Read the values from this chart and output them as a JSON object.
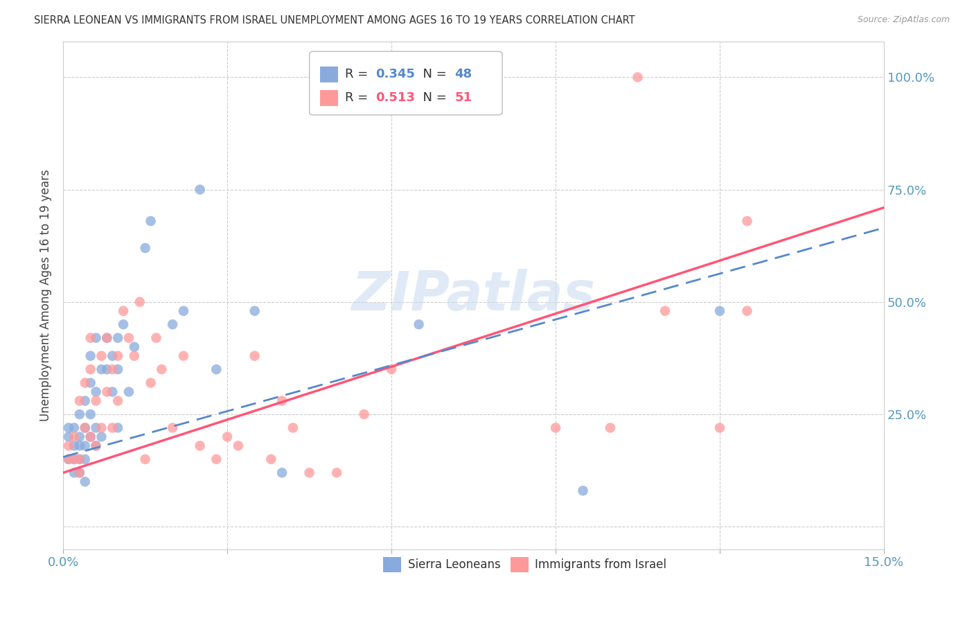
{
  "title": "SIERRA LEONEAN VS IMMIGRANTS FROM ISRAEL UNEMPLOYMENT AMONG AGES 16 TO 19 YEARS CORRELATION CHART",
  "source": "Source: ZipAtlas.com",
  "ylabel": "Unemployment Among Ages 16 to 19 years",
  "xlim": [
    0.0,
    0.15
  ],
  "ylim": [
    -0.05,
    1.08
  ],
  "xticks": [
    0.0,
    0.03,
    0.06,
    0.09,
    0.12,
    0.15
  ],
  "xtick_labels": [
    "0.0%",
    "",
    "",
    "",
    "",
    "15.0%"
  ],
  "yticks_right": [
    0.0,
    0.25,
    0.5,
    0.75,
    1.0
  ],
  "ytick_labels_right": [
    "",
    "25.0%",
    "50.0%",
    "75.0%",
    "100.0%"
  ],
  "color_sl": "#88AADD",
  "color_il": "#FF9999",
  "color_sl_line": "#5588CC",
  "color_il_line": "#FF5577",
  "watermark": "ZIPatlas",
  "sl_x": [
    0.001,
    0.001,
    0.001,
    0.002,
    0.002,
    0.002,
    0.002,
    0.003,
    0.003,
    0.003,
    0.003,
    0.003,
    0.004,
    0.004,
    0.004,
    0.004,
    0.004,
    0.005,
    0.005,
    0.005,
    0.005,
    0.006,
    0.006,
    0.006,
    0.006,
    0.007,
    0.007,
    0.008,
    0.008,
    0.009,
    0.009,
    0.01,
    0.01,
    0.01,
    0.011,
    0.012,
    0.013,
    0.015,
    0.016,
    0.02,
    0.022,
    0.025,
    0.028,
    0.035,
    0.04,
    0.065,
    0.095,
    0.12
  ],
  "sl_y": [
    0.2,
    0.22,
    0.15,
    0.18,
    0.22,
    0.15,
    0.12,
    0.15,
    0.2,
    0.25,
    0.12,
    0.18,
    0.22,
    0.15,
    0.28,
    0.18,
    0.1,
    0.25,
    0.32,
    0.2,
    0.38,
    0.3,
    0.18,
    0.42,
    0.22,
    0.2,
    0.35,
    0.35,
    0.42,
    0.3,
    0.38,
    0.42,
    0.35,
    0.22,
    0.45,
    0.3,
    0.4,
    0.62,
    0.68,
    0.45,
    0.48,
    0.75,
    0.35,
    0.48,
    0.12,
    0.45,
    0.08,
    0.48
  ],
  "il_x": [
    0.001,
    0.001,
    0.002,
    0.002,
    0.003,
    0.003,
    0.003,
    0.004,
    0.004,
    0.005,
    0.005,
    0.005,
    0.006,
    0.006,
    0.007,
    0.007,
    0.008,
    0.008,
    0.009,
    0.009,
    0.01,
    0.01,
    0.011,
    0.012,
    0.013,
    0.014,
    0.015,
    0.016,
    0.017,
    0.018,
    0.02,
    0.022,
    0.025,
    0.028,
    0.03,
    0.032,
    0.035,
    0.038,
    0.04,
    0.042,
    0.045,
    0.05,
    0.055,
    0.06,
    0.09,
    0.1,
    0.105,
    0.11,
    0.12,
    0.125,
    0.125
  ],
  "il_y": [
    0.15,
    0.18,
    0.15,
    0.2,
    0.15,
    0.12,
    0.28,
    0.22,
    0.32,
    0.2,
    0.35,
    0.42,
    0.28,
    0.18,
    0.38,
    0.22,
    0.3,
    0.42,
    0.35,
    0.22,
    0.38,
    0.28,
    0.48,
    0.42,
    0.38,
    0.5,
    0.15,
    0.32,
    0.42,
    0.35,
    0.22,
    0.38,
    0.18,
    0.15,
    0.2,
    0.18,
    0.38,
    0.15,
    0.28,
    0.22,
    0.12,
    0.12,
    0.25,
    0.35,
    0.22,
    0.22,
    1.0,
    0.48,
    0.22,
    0.68,
    0.48
  ],
  "sl_line_x0": 0.0,
  "sl_line_y0": 0.155,
  "sl_line_x1": 0.15,
  "sl_line_y1": 0.665,
  "il_line_x0": 0.0,
  "il_line_y0": 0.12,
  "il_line_x1": 0.15,
  "il_line_y1": 0.71
}
